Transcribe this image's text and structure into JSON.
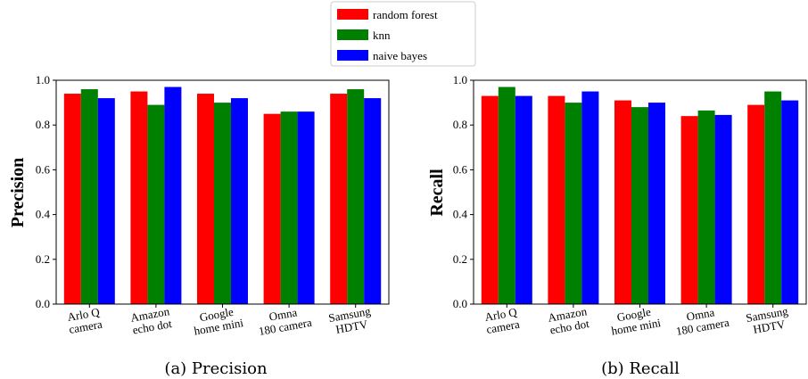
{
  "legend": {
    "series": [
      {
        "name": "random forest",
        "color": "#ff0000"
      },
      {
        "name": "knn",
        "color": "#008000"
      },
      {
        "name": "naive bayes",
        "color": "#0000ff"
      }
    ]
  },
  "chart_data": [
    {
      "type": "bar",
      "caption": "(a) Precision",
      "ylabel": "Precision",
      "xlabel": "",
      "ylim": [
        0,
        1.0
      ],
      "yticks": [
        "0.0",
        "0.2",
        "0.4",
        "0.6",
        "0.8",
        "1.0"
      ],
      "categories": [
        [
          "Arlo Q",
          "camera"
        ],
        [
          "Amazon",
          "echo dot"
        ],
        [
          "Google",
          "home mini"
        ],
        [
          "Omna",
          "180 camera"
        ],
        [
          "Samsung",
          "HDTV"
        ]
      ],
      "series": [
        {
          "name": "random forest",
          "color": "#ff0000",
          "values": [
            0.94,
            0.95,
            0.94,
            0.85,
            0.94
          ]
        },
        {
          "name": "knn",
          "color": "#008000",
          "values": [
            0.96,
            0.89,
            0.9,
            0.86,
            0.96
          ]
        },
        {
          "name": "naive bayes",
          "color": "#0000ff",
          "values": [
            0.92,
            0.97,
            0.92,
            0.86,
            0.92
          ]
        }
      ]
    },
    {
      "type": "bar",
      "caption": "(b) Recall",
      "ylabel": "Recall",
      "xlabel": "",
      "ylim": [
        0,
        1.0
      ],
      "yticks": [
        "0.0",
        "0.2",
        "0.4",
        "0.6",
        "0.8",
        "1.0"
      ],
      "categories": [
        [
          "Arlo Q",
          "camera"
        ],
        [
          "Amazon",
          "echo dot"
        ],
        [
          "Google",
          "home mini"
        ],
        [
          "Omna",
          "180 camera"
        ],
        [
          "Samsung",
          "HDTV"
        ]
      ],
      "series": [
        {
          "name": "random forest",
          "color": "#ff0000",
          "values": [
            0.93,
            0.93,
            0.91,
            0.84,
            0.89
          ]
        },
        {
          "name": "knn",
          "color": "#008000",
          "values": [
            0.97,
            0.9,
            0.88,
            0.865,
            0.95
          ]
        },
        {
          "name": "naive bayes",
          "color": "#0000ff",
          "values": [
            0.93,
            0.95,
            0.9,
            0.845,
            0.91
          ]
        }
      ]
    }
  ]
}
